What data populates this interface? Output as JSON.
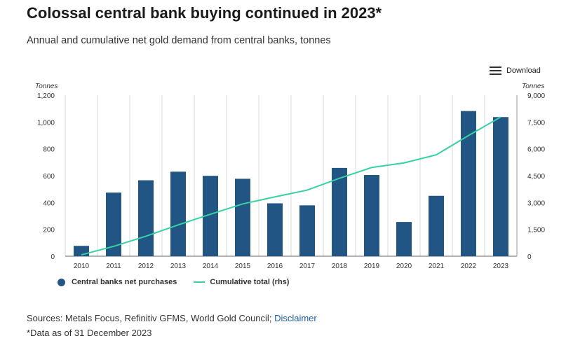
{
  "title": "Colossal central bank buying continued in 2023*",
  "subtitle": "Annual and cumulative net gold demand from central banks, tonnes",
  "download_label": "Download",
  "sources_text": "Sources: Metals Focus, Refinitiv GFMS, World Gold Council;",
  "disclaimer_label": "Disclaimer",
  "note": "*Data as of 31 December 2023",
  "colors": {
    "bars": "#215583",
    "line": "#37d1a3",
    "grid": "#d9d9d9"
  },
  "chart_data": {
    "type": "bar",
    "categories": [
      "2010",
      "2011",
      "2012",
      "2013",
      "2014",
      "2015",
      "2016",
      "2017",
      "2018",
      "2019",
      "2020",
      "2021",
      "2022",
      "2023"
    ],
    "series": [
      {
        "name": "Central banks net purchases",
        "type": "bar",
        "axis": "left",
        "values": [
          77,
          474,
          566,
          630,
          599,
          577,
          394,
          379,
          658,
          605,
          255,
          450,
          1082,
          1037
        ]
      },
      {
        "name": "Cumulative total (rhs)",
        "type": "line",
        "axis": "right",
        "values": [
          77,
          551,
          1117,
          1747,
          2346,
          2923,
          3317,
          3696,
          4354,
          4959,
          5214,
          5664,
          6746,
          7783
        ]
      }
    ],
    "y_left": {
      "label": "Tonnes",
      "ylim": [
        0,
        1200
      ],
      "ticks": [
        0,
        200,
        400,
        600,
        800,
        1000,
        1200
      ],
      "tick_labels": [
        "0",
        "200",
        "400",
        "600",
        "800",
        "1,000",
        "1,200"
      ]
    },
    "y_right": {
      "label": "Tonnes",
      "ylim": [
        0,
        9000
      ],
      "ticks": [
        0,
        1500,
        3000,
        4500,
        6000,
        7500,
        9000
      ],
      "tick_labels": [
        "0",
        "1,500",
        "3,000",
        "4,500",
        "6,000",
        "7,500",
        "9,000"
      ]
    },
    "grid": "vertical lines between categories",
    "legend_position": "bottom-left"
  }
}
